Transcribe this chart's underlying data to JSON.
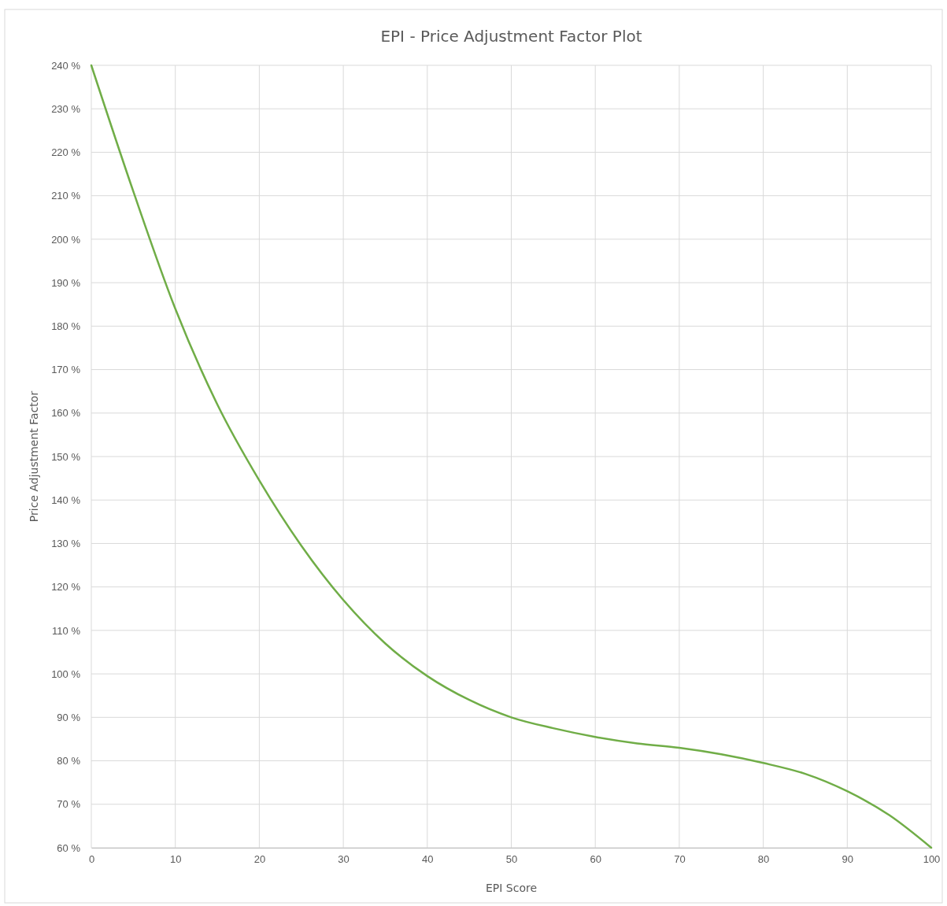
{
  "chart_data": {
    "type": "line",
    "title": "EPI - Price Adjustment Factor Plot",
    "xlabel": "EPI Score",
    "ylabel": "Price Adjustment Factor",
    "x": [
      0,
      5,
      10,
      15,
      20,
      25,
      30,
      35,
      40,
      45,
      50,
      55,
      60,
      65,
      70,
      75,
      80,
      85,
      90,
      95,
      100
    ],
    "series": [
      {
        "color": "#70ad47",
        "values": [
          240,
          211,
          184,
          162,
          144.5,
          129.5,
          117,
          107,
          99.5,
          94,
          90,
          87.5,
          85.5,
          84,
          83,
          81.5,
          79.5,
          77,
          73,
          67.5,
          60
        ]
      }
    ],
    "xlim": [
      0,
      100
    ],
    "xticks": [
      0,
      10,
      20,
      30,
      40,
      50,
      60,
      70,
      80,
      90,
      100
    ],
    "ylim": [
      60,
      240
    ],
    "yticks": [
      {
        "value": 60,
        "label": "60 %"
      },
      {
        "value": 70,
        "label": "70 %"
      },
      {
        "value": 80,
        "label": "80 %"
      },
      {
        "value": 90,
        "label": "90 %"
      },
      {
        "value": 100,
        "label": "100 %"
      },
      {
        "value": 110,
        "label": "110 %"
      },
      {
        "value": 120,
        "label": "120 %"
      },
      {
        "value": 130,
        "label": "130 %"
      },
      {
        "value": 140,
        "label": "140 %"
      },
      {
        "value": 150,
        "label": "150 %"
      },
      {
        "value": 160,
        "label": "160 %"
      },
      {
        "value": 170,
        "label": "170 %"
      },
      {
        "value": 180,
        "label": "180 %"
      },
      {
        "value": 190,
        "label": "190 %"
      },
      {
        "value": 200,
        "label": "200 %"
      },
      {
        "value": 210,
        "label": "210 %"
      },
      {
        "value": 220,
        "label": "220 %"
      },
      {
        "value": 230,
        "label": "230 %"
      },
      {
        "value": 240,
        "label": "240 %"
      }
    ],
    "grid": true,
    "marker": "none",
    "line_style": "solid"
  }
}
